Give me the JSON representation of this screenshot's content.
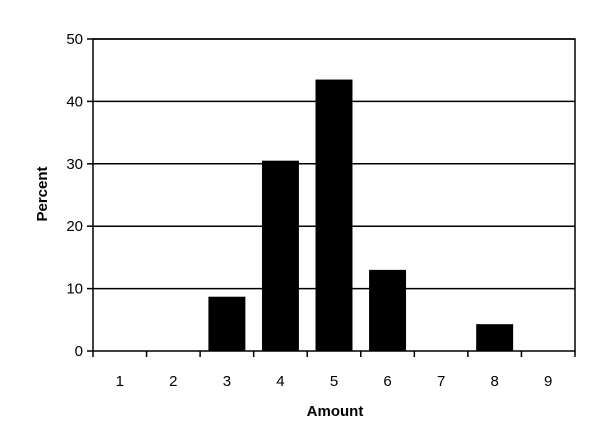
{
  "chart_data": {
    "type": "bar",
    "title": "",
    "xlabel": "Amount",
    "ylabel": "Percent",
    "categories": [
      "1",
      "2",
      "3",
      "4",
      "5",
      "6",
      "7",
      "8",
      "9"
    ],
    "values": [
      0,
      0,
      8.7,
      30.5,
      43.5,
      13.0,
      0,
      4.3,
      0
    ],
    "ylim": [
      0,
      50
    ],
    "yticks": [
      0,
      10,
      20,
      30,
      40,
      50
    ],
    "grid": true,
    "legend": "none",
    "bar_color": "#000000"
  }
}
